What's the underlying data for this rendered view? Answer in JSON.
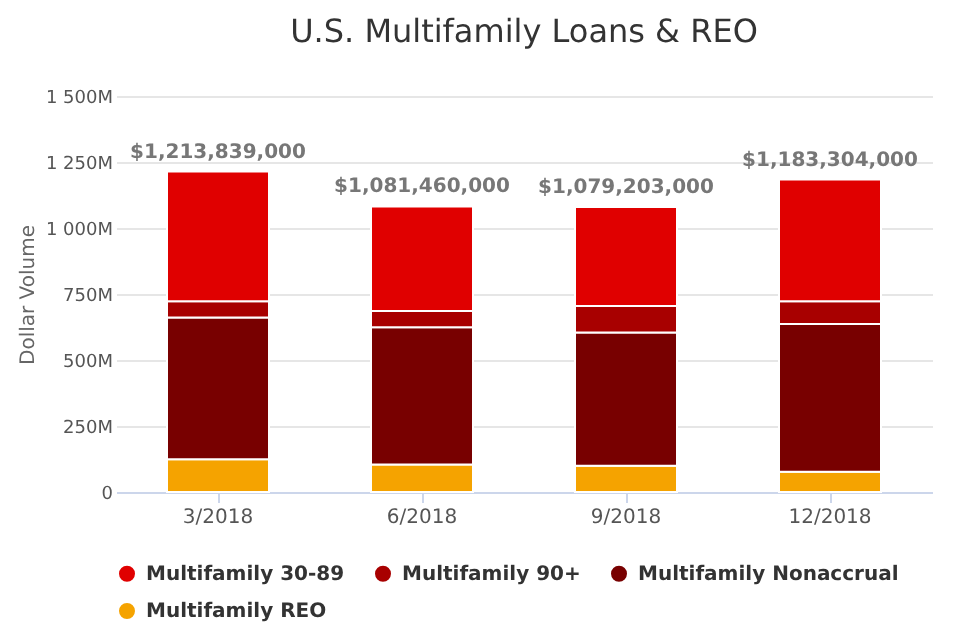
{
  "chart_data": {
    "type": "bar",
    "title": "U.S. Multifamily Loans & REO",
    "ylabel": "Dollar Volume",
    "categories": [
      "3/2018",
      "6/2018",
      "9/2018",
      "12/2018"
    ],
    "stacked": true,
    "series": [
      {
        "name": "Multifamily REO",
        "color": "#f5a300",
        "values": [
          124000000,
          104000000,
          99000000,
          77000000
        ]
      },
      {
        "name": "Multifamily Nonaccrual",
        "color": "#780000",
        "values": [
          537000000,
          520000000,
          505000000,
          559000000
        ]
      },
      {
        "name": "Multifamily 90+",
        "color": "#a80000",
        "values": [
          62000000,
          62000000,
          101000000,
          87000000
        ]
      },
      {
        "name": "Multifamily 30-89",
        "color": "#e00000",
        "values": [
          490839000,
          395460000,
          374203000,
          460304000
        ]
      }
    ],
    "totals": [
      "$1,213,839,000",
      "$1,081,460,000",
      "$1,079,203,000",
      "$1,183,304,000"
    ],
    "ylim": [
      0,
      1500000000
    ],
    "yticks": [
      {
        "value": 0,
        "label": "0"
      },
      {
        "value": 250000000,
        "label": "250M"
      },
      {
        "value": 500000000,
        "label": "500M"
      },
      {
        "value": 750000000,
        "label": "750M"
      },
      {
        "value": 1000000000,
        "label": "1 000M"
      },
      {
        "value": 1250000000,
        "label": "1 250M"
      },
      {
        "value": 1500000000,
        "label": "1 500M"
      }
    ],
    "grid": "y",
    "legend": "bottom"
  }
}
